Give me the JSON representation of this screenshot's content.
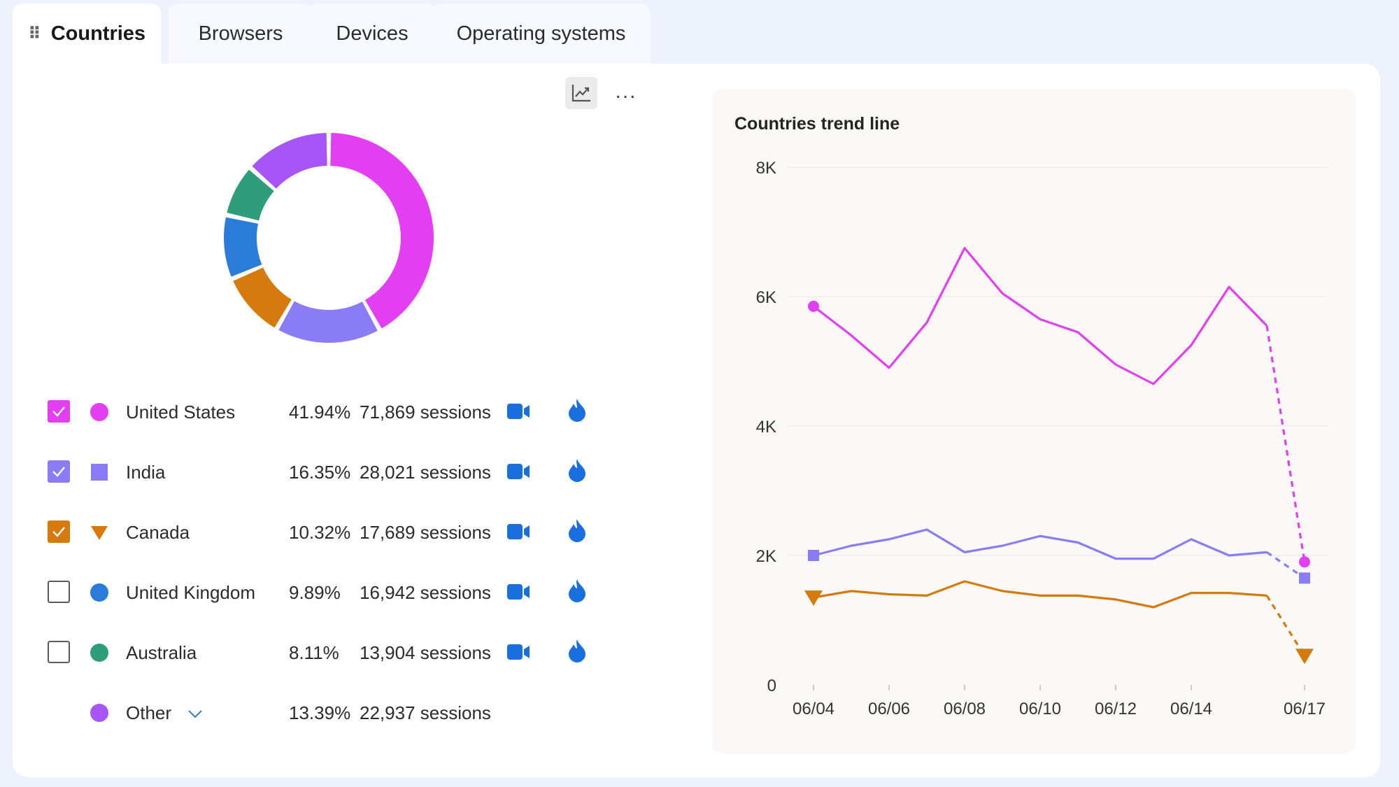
{
  "tabs": [
    {
      "label": "Countries",
      "active": true
    },
    {
      "label": "Browsers",
      "active": false
    },
    {
      "label": "Devices",
      "active": false
    },
    {
      "label": "Operating systems",
      "active": false
    }
  ],
  "toolbar": {
    "chart_icon": "line-chart-icon",
    "more_label": "..."
  },
  "rows": [
    {
      "name": "United States",
      "pct": "41.94%",
      "sessions": "71,869 sessions",
      "checked": true,
      "color": "#e33ef2",
      "marker": "circle"
    },
    {
      "name": "India",
      "pct": "16.35%",
      "sessions": "28,021 sessions",
      "checked": true,
      "color": "#8a7cf7",
      "marker": "square"
    },
    {
      "name": "Canada",
      "pct": "10.32%",
      "sessions": "17,689 sessions",
      "checked": true,
      "color": "#d67a0d",
      "marker": "triangle"
    },
    {
      "name": "United Kingdom",
      "pct": "9.89%",
      "sessions": "16,942 sessions",
      "checked": false,
      "color": "#2b7cd8",
      "marker": "circle"
    },
    {
      "name": "Australia",
      "pct": "8.11%",
      "sessions": "13,904 sessions",
      "checked": false,
      "color": "#2e9e7a",
      "marker": "circle"
    },
    {
      "name": "Other",
      "pct": "13.39%",
      "sessions": "22,937 sessions",
      "checked": null,
      "color": "#a855f7",
      "marker": "circle"
    }
  ],
  "chart_data": [
    {
      "type": "pie",
      "title": "",
      "categories": [
        "United States",
        "India",
        "Canada",
        "United Kingdom",
        "Australia",
        "Other"
      ],
      "values": [
        41.94,
        16.35,
        10.32,
        9.89,
        8.11,
        13.39
      ],
      "colors": [
        "#e33ef2",
        "#8a7cf7",
        "#d67a0d",
        "#2b7cd8",
        "#2e9e7a",
        "#a855f7"
      ]
    },
    {
      "type": "line",
      "title": "Countries trend line",
      "x": [
        "06/04",
        "06/05",
        "06/06",
        "06/07",
        "06/08",
        "06/09",
        "06/10",
        "06/11",
        "06/12",
        "06/13",
        "06/14",
        "06/15",
        "06/16",
        "06/17"
      ],
      "xticks": [
        "06/04",
        "06/06",
        "06/08",
        "06/10",
        "06/12",
        "06/14",
        "06/17"
      ],
      "yticks": [
        0,
        2000,
        4000,
        6000,
        8000
      ],
      "ytick_labels": [
        "0",
        "2K",
        "4K",
        "6K",
        "8K"
      ],
      "ylim": [
        0,
        8000
      ],
      "dashed_last_segment": true,
      "series": [
        {
          "name": "United States",
          "color": "#e33ef2",
          "marker": "circle",
          "values": [
            5850,
            5400,
            4900,
            5600,
            6750,
            6050,
            5650,
            5450,
            4950,
            4650,
            5250,
            6150,
            5550,
            1900
          ]
        },
        {
          "name": "India",
          "color": "#8a7cf7",
          "marker": "square",
          "values": [
            2000,
            2150,
            2250,
            2400,
            2050,
            2150,
            2300,
            2200,
            1950,
            1950,
            2250,
            2000,
            2050,
            1650
          ]
        },
        {
          "name": "Canada",
          "color": "#d67a0d",
          "marker": "triangle",
          "values": [
            1350,
            1450,
            1400,
            1380,
            1600,
            1450,
            1380,
            1380,
            1320,
            1200,
            1420,
            1420,
            1380,
            450
          ]
        }
      ]
    }
  ]
}
